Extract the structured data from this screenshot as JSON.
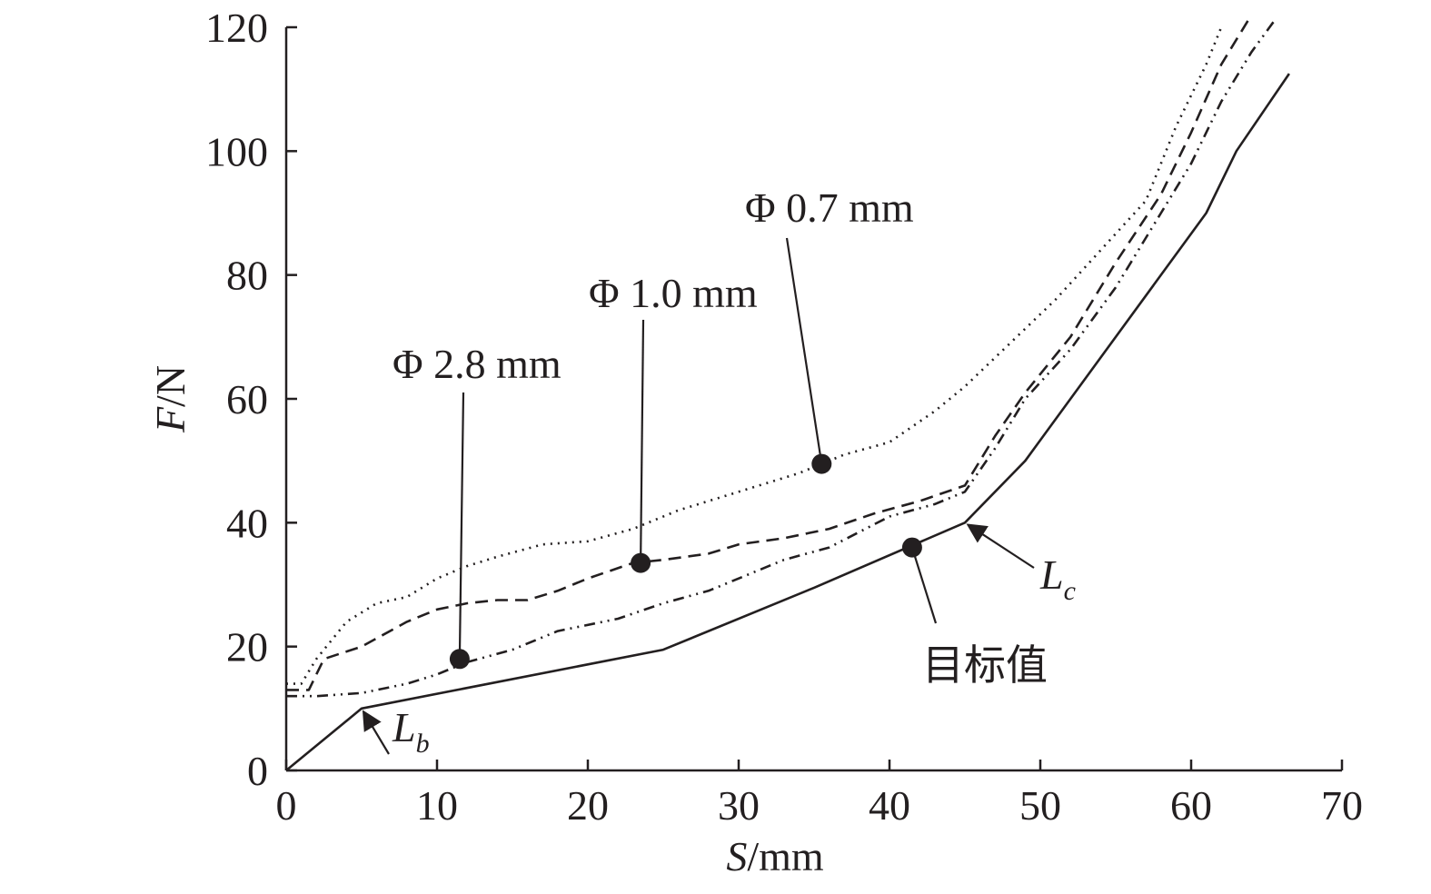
{
  "chart_data": {
    "type": "line",
    "xlabel": {
      "var": "S",
      "unit": "/mm"
    },
    "ylabel": {
      "var": "F",
      "unit": "/N"
    },
    "xlim": [
      0,
      70
    ],
    "ylim": [
      0,
      120
    ],
    "x_ticks": [
      "0",
      "10",
      "20",
      "30",
      "40",
      "50",
      "60",
      "70"
    ],
    "y_ticks": [
      "0",
      "20",
      "40",
      "60",
      "80",
      "100",
      "120"
    ],
    "grid": false,
    "series": [
      {
        "name": "目标值",
        "style": "solid",
        "x": [
          0,
          5,
          25,
          35,
          45,
          49,
          61,
          63,
          66.5
        ],
        "y": [
          0,
          10,
          19.5,
          29.5,
          40,
          50,
          90,
          100,
          112.5
        ]
      },
      {
        "name": "Φ 2.8 mm",
        "style": "dash-dot-dot",
        "x": [
          0,
          2,
          5,
          8,
          10,
          12,
          15,
          18,
          22,
          25,
          28,
          30,
          33,
          36,
          40,
          43,
          45,
          47,
          49,
          52,
          55,
          58,
          60,
          62,
          64,
          65.5
        ],
        "y": [
          12,
          12,
          12.5,
          14,
          15.5,
          17.5,
          19.5,
          22.5,
          24.5,
          27,
          29,
          31,
          34,
          36,
          41,
          43,
          45,
          52,
          60,
          68,
          78,
          90,
          98,
          108,
          116,
          121
        ]
      },
      {
        "name": "Φ 1.0 mm",
        "style": "dashed",
        "x": [
          0,
          1.5,
          2.5,
          5,
          8,
          10,
          12,
          14,
          16,
          18,
          20,
          23,
          25,
          28,
          30,
          33,
          36,
          39,
          42,
          45,
          47,
          49,
          52,
          55,
          58,
          60,
          62,
          64
        ],
        "y": [
          13,
          13,
          18,
          20,
          24,
          26,
          27,
          27.5,
          27.5,
          29,
          31,
          33.5,
          34,
          35,
          36.5,
          37.5,
          39,
          41.5,
          43.5,
          46,
          54,
          61,
          70,
          82,
          93,
          103,
          114,
          122
        ]
      },
      {
        "name": "Φ 0.7 mm",
        "style": "dotted",
        "x": [
          0,
          1,
          2,
          4,
          6,
          8,
          10,
          12,
          14,
          17,
          20,
          23,
          26,
          30,
          34,
          37,
          40,
          43,
          45,
          48,
          51,
          54,
          57,
          59,
          61,
          62
        ],
        "y": [
          14,
          14,
          18,
          24,
          27,
          28,
          31,
          33,
          34.5,
          36.5,
          37,
          39,
          42,
          45,
          48,
          51,
          53,
          58,
          62,
          69,
          76,
          84,
          92,
          104,
          114,
          120
        ]
      }
    ],
    "annotations": [
      {
        "label": "Φ 0.7 mm",
        "point": [
          35.5,
          49.5
        ]
      },
      {
        "label": "Φ 1.0 mm",
        "point": [
          23.5,
          33.5
        ]
      },
      {
        "label": "Φ 2.8 mm",
        "point": [
          11.5,
          18
        ]
      },
      {
        "label": "目标值",
        "point": [
          41.5,
          36
        ]
      },
      {
        "label": {
          "var": "L",
          "sub": "b"
        },
        "arrow_to": [
          5,
          10
        ]
      },
      {
        "label": {
          "var": "L",
          "sub": "c"
        },
        "arrow_to": [
          45,
          40
        ]
      }
    ]
  }
}
